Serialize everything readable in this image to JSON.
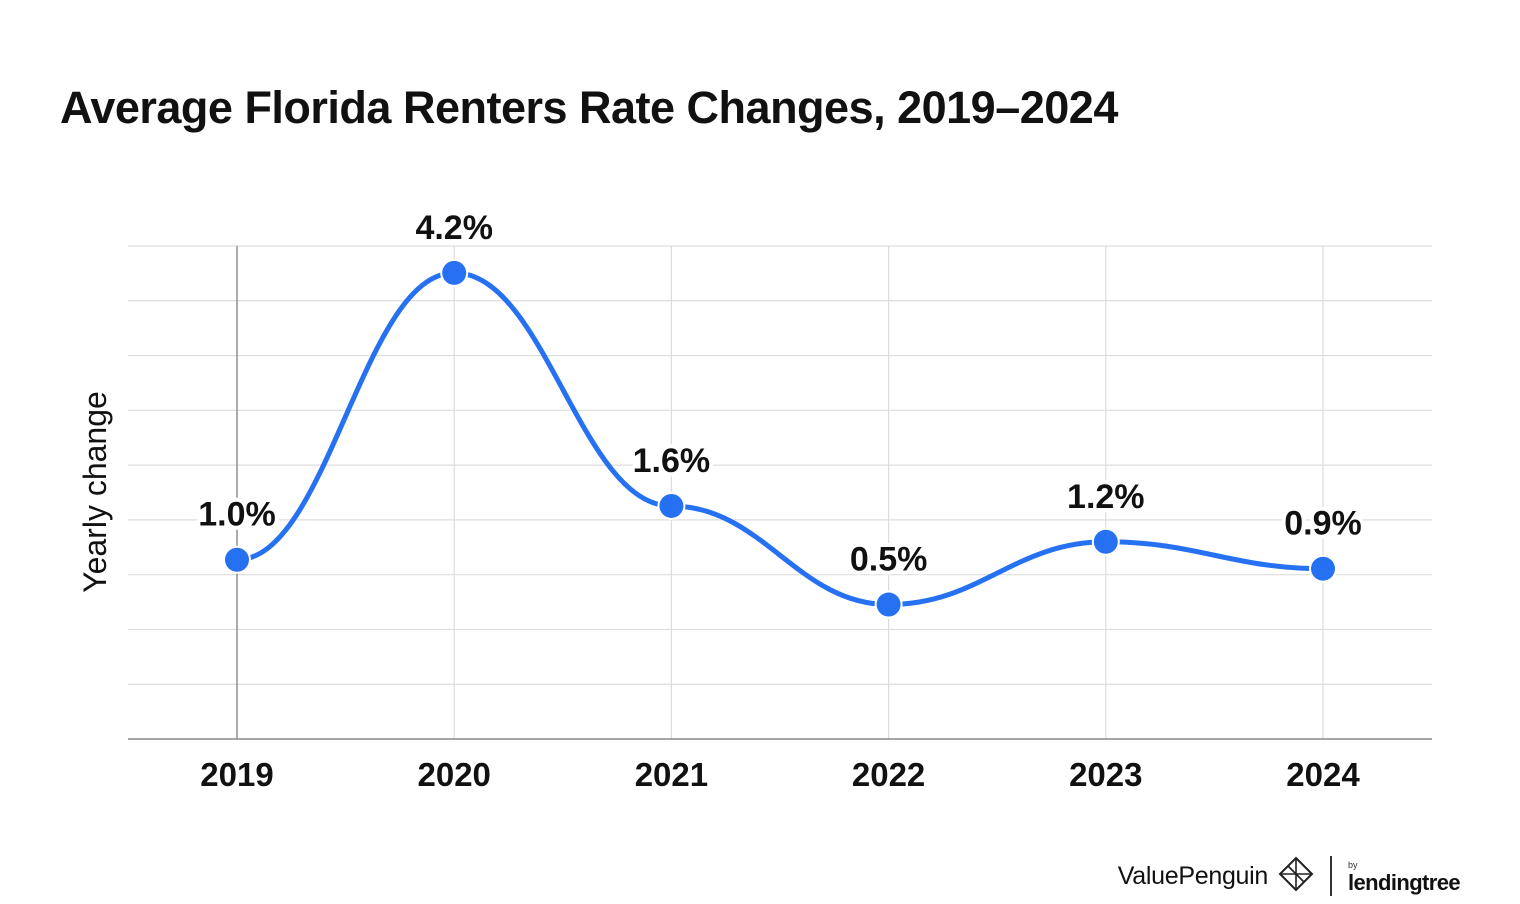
{
  "title": "Average Florida Renters Rate Changes, 2019–2024",
  "chart_data": {
    "type": "line",
    "title": "Average Florida Renters Rate Changes, 2019–2024",
    "xlabel": "",
    "ylabel": "Yearly change",
    "categories": [
      "2019",
      "2020",
      "2021",
      "2022",
      "2023",
      "2024"
    ],
    "values": [
      1.0,
      4.2,
      1.6,
      0.5,
      1.2,
      0.9
    ],
    "data_labels": [
      "1.0%",
      "4.2%",
      "1.6%",
      "0.5%",
      "1.2%",
      "0.9%"
    ],
    "ylim": [
      -1.0,
      4.5
    ],
    "grid": true,
    "line_color": "#2671f2",
    "grid_color": "#dddddd",
    "axis_color": "#888888"
  },
  "footer": {
    "brand": "ValuePenguin",
    "by": "by",
    "partner": "lendingtree",
    "logo_icon": "valuepenguin-logo-icon"
  }
}
